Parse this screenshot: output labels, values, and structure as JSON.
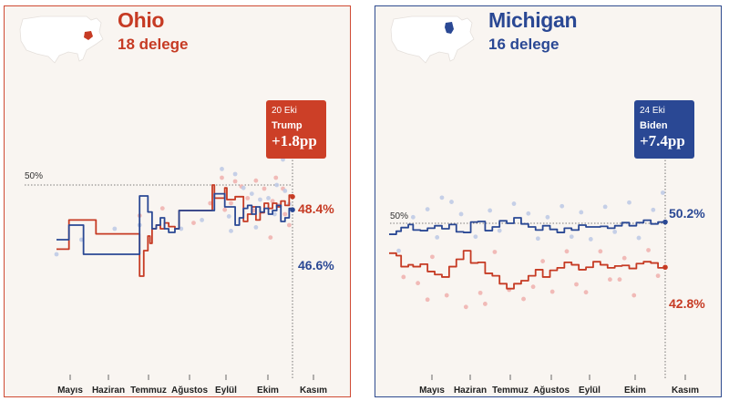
{
  "colors": {
    "trump": "#c63b24",
    "biden": "#2a4894",
    "trump_dot": "#f0b4b0",
    "biden_dot": "#bfcbe6",
    "panel_bg": "#f9f5f1",
    "map": "#ffffff"
  },
  "chart_data": [
    {
      "type": "line",
      "state": "Ohio",
      "title": "Ohio",
      "subtitle": "18 delege",
      "map_icon": "usa-map-with-ohio-highlighted",
      "months": [
        "Mayıs",
        "Haziran",
        "Temmuz",
        "Ağustos",
        "Eylül",
        "Ekim",
        "Kasım"
      ],
      "reference_line": {
        "value": 50,
        "label": "50%"
      },
      "callout": {
        "date": "20 Eki",
        "leader": "Trump",
        "margin": "+1.8pp"
      },
      "end_labels": {
        "trump": "48.4%",
        "biden": "46.6%"
      },
      "ylim": [
        36,
        56
      ],
      "xlim": [
        0,
        6.5
      ],
      "series": [
        {
          "name": "Trump",
          "color": "#c63b24",
          "x": [
            0.0,
            0.25,
            0.3,
            0.85,
            0.95,
            1.4,
            1.55,
            1.95,
            2.0,
            2.1,
            2.2,
            2.25,
            2.3,
            2.4,
            2.5,
            2.6,
            2.7,
            2.85,
            2.95,
            3.05,
            3.25,
            3.4,
            3.55,
            3.7,
            3.75,
            3.8,
            3.95,
            4.05,
            4.1,
            4.2,
            4.3,
            4.5,
            4.6,
            4.7,
            4.8,
            4.9,
            5.0,
            5.1,
            5.2,
            5.3,
            5.4,
            5.5,
            5.6,
            5.68
          ],
          "y": [
            41.2,
            41.2,
            45.2,
            45.2,
            43.3,
            43.3,
            43.3,
            43.3,
            37.5,
            41.0,
            43.0,
            42.0,
            44.0,
            44.5,
            44.0,
            44.8,
            44.3,
            44.0,
            46.5,
            46.5,
            46.5,
            46.5,
            46.5,
            46.5,
            50.0,
            48.2,
            48.2,
            49.6,
            48.0,
            48.0,
            48.4,
            45.0,
            46.0,
            47.0,
            45.2,
            46.2,
            47.5,
            46.8,
            47.5,
            47.0,
            47.8,
            47.2,
            48.6,
            48.4
          ]
        },
        {
          "name": "Biden",
          "color": "#2a4894",
          "x": [
            0.0,
            0.25,
            0.3,
            0.6,
            0.65,
            1.45,
            1.55,
            1.95,
            2.0,
            2.1,
            2.2,
            2.3,
            2.4,
            2.5,
            2.6,
            2.7,
            2.85,
            2.95,
            3.1,
            3.3,
            3.5,
            3.7,
            3.75,
            3.8,
            3.95,
            4.05,
            4.2,
            4.3,
            4.4,
            4.5,
            4.6,
            4.7,
            4.8,
            4.9,
            5.0,
            5.1,
            5.2,
            5.3,
            5.4,
            5.5,
            5.6,
            5.68
          ],
          "y": [
            42.5,
            42.5,
            44.5,
            44.5,
            40.5,
            40.5,
            40.5,
            40.5,
            48.5,
            48.5,
            46.3,
            44.0,
            44.5,
            45.5,
            44.0,
            43.5,
            44.0,
            46.5,
            46.5,
            46.5,
            46.5,
            46.5,
            46.5,
            48.8,
            48.8,
            47.0,
            47.0,
            44.5,
            45.5,
            46.8,
            47.2,
            46.0,
            47.0,
            46.3,
            46.8,
            46.0,
            46.5,
            47.2,
            45.0,
            45.5,
            46.8,
            46.6
          ]
        }
      ],
      "poll_dots": {
        "trump": [
          [
            3.98,
            51.0
          ],
          [
            4.2,
            47.5
          ],
          [
            4.3,
            50.5
          ],
          [
            4.45,
            49.8
          ],
          [
            4.6,
            48.2
          ],
          [
            4.8,
            50.6
          ],
          [
            5.0,
            49.5
          ],
          [
            5.2,
            47.8
          ],
          [
            5.35,
            47.2
          ],
          [
            5.45,
            49.5
          ],
          [
            5.5,
            46.0
          ],
          [
            5.6,
            44.5
          ],
          [
            5.15,
            42.8
          ],
          [
            3.3,
            44.8
          ],
          [
            2.55,
            46.8
          ],
          [
            2.0,
            45.8
          ],
          [
            4.75,
            46.5
          ],
          [
            5.28,
            51.0
          ],
          [
            4.05,
            46.6
          ],
          [
            3.7,
            47.5
          ]
        ],
        "biden": [
          [
            3.98,
            52.2
          ],
          [
            4.3,
            51.5
          ],
          [
            4.5,
            49.6
          ],
          [
            4.7,
            48.8
          ],
          [
            4.9,
            48.0
          ],
          [
            5.1,
            48.2
          ],
          [
            5.3,
            50.0
          ],
          [
            5.5,
            49.2
          ],
          [
            5.6,
            47.4
          ],
          [
            4.2,
            43.7
          ],
          [
            3.0,
            44.0
          ],
          [
            2.0,
            44.5
          ],
          [
            1.4,
            44.0
          ],
          [
            0.6,
            42.5
          ],
          [
            0.0,
            40.5
          ],
          [
            4.8,
            44.2
          ],
          [
            5.25,
            46.0
          ],
          [
            5.45,
            53.5
          ],
          [
            4.15,
            45.7
          ],
          [
            3.5,
            45.2
          ]
        ]
      }
    },
    {
      "type": "line",
      "state": "Michigan",
      "title": "Michigan",
      "subtitle": "16 delege",
      "map_icon": "usa-map-with-michigan-highlighted",
      "months": [
        "Mayıs",
        "Haziran",
        "Temmuz",
        "Ağustos",
        "Eylül",
        "Ekim",
        "Kasım"
      ],
      "reference_line": {
        "value": 50,
        "label": "50%"
      },
      "callout": {
        "date": "24 Eki",
        "leader": "Biden",
        "margin": "+7.4pp"
      },
      "end_labels": {
        "biden": "50.2%",
        "trump": "42.8%"
      },
      "ylim": [
        36,
        56
      ],
      "xlim": [
        0,
        6.5
      ],
      "series": [
        {
          "name": "Biden",
          "color": "#2a4894",
          "x": [
            0.0,
            0.15,
            0.25,
            0.4,
            0.5,
            0.65,
            0.8,
            0.95,
            1.1,
            1.25,
            1.4,
            1.55,
            1.7,
            1.85,
            2.0,
            2.15,
            2.3,
            2.45,
            2.6,
            2.75,
            2.9,
            3.05,
            3.2,
            3.35,
            3.5,
            3.65,
            3.8,
            3.95,
            4.1,
            4.25,
            4.4,
            4.55,
            4.7,
            4.85,
            5.0,
            5.15,
            5.3,
            5.45,
            5.6,
            5.75
          ],
          "y": [
            48.2,
            48.7,
            49.3,
            49.8,
            48.9,
            48.8,
            49.2,
            49.6,
            49.1,
            49.8,
            48.6,
            48.5,
            50.2,
            50.3,
            48.8,
            49.4,
            50.4,
            50.0,
            50.9,
            49.9,
            49.4,
            48.9,
            49.6,
            49.0,
            48.5,
            49.2,
            48.9,
            49.7,
            49.4,
            49.4,
            49.5,
            49.2,
            49.6,
            50.1,
            49.6,
            50.1,
            50.5,
            49.9,
            50.2,
            50.2
          ]
        },
        {
          "name": "Trump",
          "color": "#c63b24",
          "x": [
            0.0,
            0.15,
            0.25,
            0.4,
            0.5,
            0.65,
            0.8,
            0.95,
            1.1,
            1.25,
            1.4,
            1.55,
            1.7,
            1.85,
            2.0,
            2.15,
            2.3,
            2.45,
            2.6,
            2.75,
            2.9,
            3.05,
            3.2,
            3.35,
            3.5,
            3.65,
            3.8,
            3.95,
            4.1,
            4.25,
            4.4,
            4.55,
            4.7,
            4.85,
            5.0,
            5.15,
            5.3,
            5.45,
            5.6,
            5.75
          ],
          "y": [
            45.1,
            44.7,
            42.9,
            43.2,
            42.9,
            43.3,
            42.1,
            41.6,
            41.2,
            42.9,
            44.1,
            45.5,
            43.5,
            43.6,
            41.8,
            41.4,
            40.1,
            39.3,
            40.1,
            40.6,
            41.4,
            42.4,
            41.2,
            42.3,
            42.7,
            43.6,
            43.2,
            42.4,
            42.8,
            43.7,
            43.2,
            42.7,
            43.0,
            43.1,
            42.6,
            43.4,
            43.7,
            43.5,
            42.7,
            42.8
          ]
        }
      ],
      "poll_dots": {
        "biden": [
          [
            0.2,
            45.5
          ],
          [
            0.5,
            51.0
          ],
          [
            0.8,
            52.3
          ],
          [
            1.0,
            47.7
          ],
          [
            1.3,
            53.5
          ],
          [
            1.5,
            51.5
          ],
          [
            1.8,
            47.8
          ],
          [
            2.1,
            52.1
          ],
          [
            2.3,
            48.8
          ],
          [
            2.6,
            53.2
          ],
          [
            2.9,
            51.6
          ],
          [
            3.1,
            47.5
          ],
          [
            3.3,
            51.0
          ],
          [
            3.6,
            52.8
          ],
          [
            3.8,
            47.8
          ],
          [
            4.0,
            51.8
          ],
          [
            4.2,
            47.4
          ],
          [
            4.5,
            52.7
          ],
          [
            4.7,
            48.6
          ],
          [
            5.0,
            53.4
          ],
          [
            5.2,
            47.6
          ],
          [
            5.5,
            52.2
          ],
          [
            5.7,
            55.0
          ],
          [
            1.1,
            54.2
          ]
        ],
        "trump": [
          [
            0.3,
            41.2
          ],
          [
            0.6,
            40.2
          ],
          [
            0.9,
            44.5
          ],
          [
            1.2,
            38.2
          ],
          [
            1.6,
            36.3
          ],
          [
            1.9,
            38.6
          ],
          [
            2.2,
            45.3
          ],
          [
            2.5,
            39.1
          ],
          [
            2.8,
            37.6
          ],
          [
            3.0,
            39.6
          ],
          [
            3.4,
            38.8
          ],
          [
            3.7,
            45.4
          ],
          [
            3.9,
            40.0
          ],
          [
            4.1,
            38.7
          ],
          [
            4.4,
            45.4
          ],
          [
            4.6,
            40.8
          ],
          [
            4.9,
            44.3
          ],
          [
            5.1,
            38.2
          ],
          [
            5.4,
            45.6
          ],
          [
            5.6,
            41.4
          ],
          [
            0.8,
            37.5
          ],
          [
            2.0,
            36.8
          ],
          [
            3.2,
            43.8
          ],
          [
            4.8,
            40.8
          ]
        ]
      }
    }
  ]
}
